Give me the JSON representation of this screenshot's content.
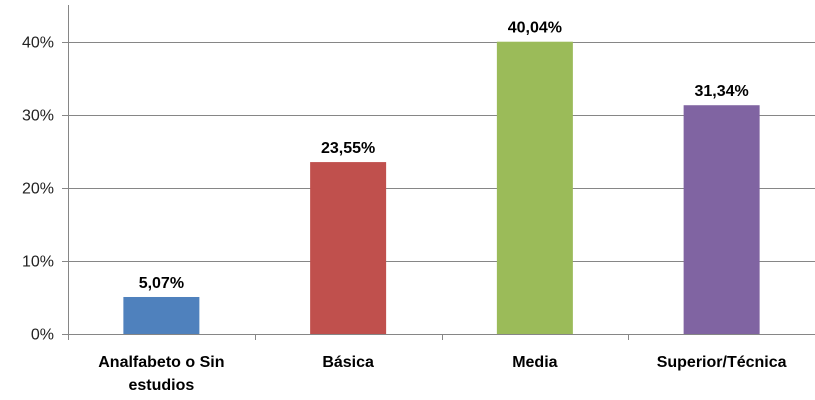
{
  "chart_data": {
    "type": "bar",
    "categories": [
      [
        "Analfabeto o Sin",
        "estudios"
      ],
      [
        "Básica"
      ],
      [
        "Media"
      ],
      [
        "Superior/Técnica"
      ]
    ],
    "values": [
      5.07,
      23.55,
      40.04,
      31.34
    ],
    "data_labels": [
      "5,07%",
      "23,55%",
      "40,04%",
      "31,34%"
    ],
    "colors": [
      "#4f81bd",
      "#c0504d",
      "#9bbb59",
      "#8064a2"
    ],
    "ylim": [
      0,
      40
    ],
    "yticks": [
      {
        "value": 0,
        "label": "0%"
      },
      {
        "value": 10,
        "label": "10%"
      },
      {
        "value": 20,
        "label": "20%"
      },
      {
        "value": 30,
        "label": "30%"
      },
      {
        "value": 40,
        "label": "40%"
      }
    ],
    "grid": true,
    "legend": "none"
  }
}
